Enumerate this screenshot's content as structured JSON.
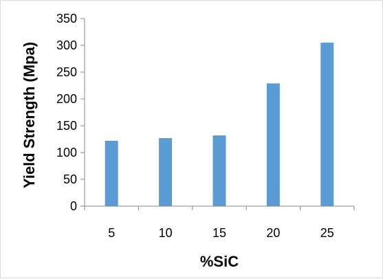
{
  "chart_data": {
    "type": "bar",
    "title": "",
    "xlabel": "%SiC",
    "ylabel": "Yield Strength (Mpa)",
    "categories": [
      "5",
      "10",
      "15",
      "20",
      "25"
    ],
    "values": [
      122,
      127,
      132,
      229,
      305
    ],
    "ylim": [
      0,
      350
    ],
    "yticks": [
      0,
      50,
      100,
      150,
      200,
      250,
      300,
      350
    ],
    "grid": false,
    "legend": "none",
    "bar_color": "#5B9BD5",
    "axis_color": "#868686"
  }
}
